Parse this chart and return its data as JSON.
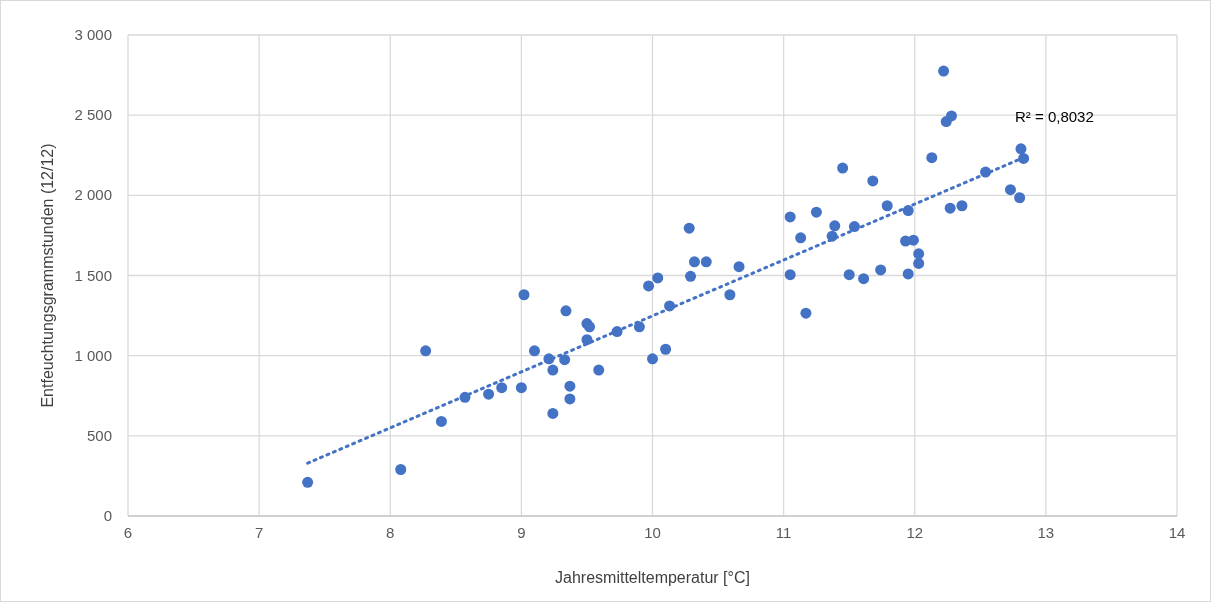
{
  "chart_data": {
    "type": "scatter",
    "xlabel": "Jahresmitteltemperatur [°C]",
    "ylabel": "Entfeuchtungsgrammstunden (12/12)",
    "xlim": [
      6,
      14
    ],
    "xticks": [
      6,
      7,
      8,
      9,
      10,
      11,
      12,
      13,
      14
    ],
    "ylim": [
      0,
      3000
    ],
    "yticks": [
      0,
      500,
      {
        "value": 1000,
        "label": "1 000"
      },
      {
        "value": 1500,
        "label": "1 500"
      },
      {
        "value": 2000,
        "label": "2 000"
      },
      {
        "value": 2500,
        "label": "2 500"
      },
      {
        "value": 3000,
        "label": "3 000"
      }
    ],
    "grid": true,
    "marker": "circle",
    "series": [
      {
        "color": "#4472c4",
        "x": [
          7.37,
          8.08,
          8.27,
          8.39,
          8.57,
          8.75,
          8.85,
          9.0,
          9.02,
          9.1,
          9.21,
          9.24,
          9.24,
          9.33,
          9.34,
          9.37,
          9.37,
          9.5,
          9.5,
          9.52,
          9.59,
          9.73,
          9.9,
          9.97,
          10.0,
          10.04,
          10.13,
          10.1,
          10.28,
          10.29,
          10.32,
          10.41,
          10.59,
          10.66,
          11.05,
          11.05,
          11.13,
          11.17,
          11.25,
          11.37,
          11.39,
          11.45,
          11.5,
          11.54,
          11.61,
          11.68,
          11.74,
          11.79,
          11.93,
          11.95,
          11.95,
          11.99,
          12.03,
          12.03,
          12.13,
          12.22,
          12.24,
          12.28,
          12.27,
          12.36,
          12.54,
          12.73,
          12.8,
          12.81,
          12.83
        ],
        "values": [
          210,
          290,
          1030,
          590,
          740,
          760,
          800,
          800,
          1380,
          1030,
          980,
          910,
          640,
          975,
          1280,
          810,
          730,
          1100,
          1200,
          1180,
          910,
          1150,
          1180,
          1435,
          980,
          1485,
          1310,
          1040,
          1795,
          1495,
          1585,
          1585,
          1380,
          1555,
          1865,
          1505,
          1735,
          1265,
          1895,
          1745,
          1810,
          2170,
          1505,
          1805,
          1480,
          2090,
          1535,
          1935,
          1715,
          1905,
          1510,
          1720,
          1635,
          1575,
          2235,
          2775,
          2460,
          2495,
          1920,
          1935,
          2145,
          2035,
          1985,
          2290,
          2230
        ]
      },
      {
        "type": "line",
        "color": "#4472c4",
        "line_style": "dotted",
        "marker": "none",
        "x": [
          7.37,
          12.8
        ],
        "values": [
          330,
          2225
        ]
      }
    ],
    "annotations": [
      "R² = 0,8032"
    ]
  }
}
